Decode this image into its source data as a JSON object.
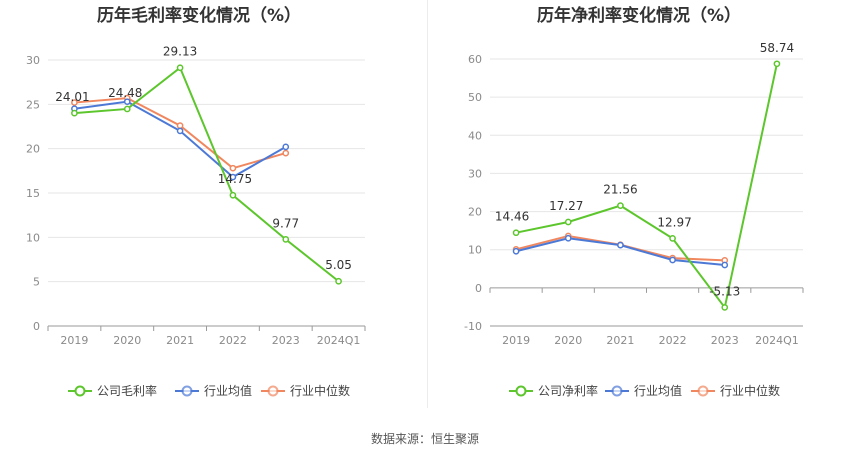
{
  "source": "数据来源：恒生聚源",
  "chart_data": [
    {
      "type": "line",
      "title": "历年毛利率变化情况（%）",
      "categories": [
        "2019",
        "2020",
        "2021",
        "2022",
        "2023",
        "2024Q1"
      ],
      "ylim": [
        0,
        30
      ],
      "yticks": [
        0,
        5,
        10,
        15,
        20,
        25,
        30
      ],
      "grid": true,
      "legend": "bottom",
      "series": [
        {
          "name": "公司毛利率",
          "color": "#5cc62c",
          "values": [
            24.01,
            24.48,
            29.13,
            14.75,
            9.77,
            5.05
          ],
          "labels": [
            "24.01",
            "24.48",
            "29.13",
            "14.75",
            "9.77",
            "5.05"
          ]
        },
        {
          "name": "行业均值",
          "color": "#4d79d6",
          "values": [
            24.5,
            25.3,
            22.0,
            16.8,
            20.2,
            null
          ]
        },
        {
          "name": "行业中位数",
          "color": "#f0875f",
          "values": [
            25.2,
            25.7,
            22.6,
            17.8,
            19.5,
            null
          ]
        }
      ]
    },
    {
      "type": "line",
      "title": "历年净利率变化情况（%）",
      "categories": [
        "2019",
        "2020",
        "2021",
        "2022",
        "2023",
        "2024Q1"
      ],
      "ylim": [
        -10,
        60
      ],
      "yticks": [
        -10,
        0,
        10,
        20,
        30,
        40,
        50,
        60
      ],
      "grid": true,
      "legend": "bottom",
      "series": [
        {
          "name": "公司净利率",
          "color": "#5cc62c",
          "values": [
            14.46,
            17.27,
            21.56,
            12.97,
            -5.13,
            58.74
          ],
          "labels": [
            "14.46",
            "17.27",
            "21.56",
            "12.97",
            "-5.13",
            "58.74"
          ]
        },
        {
          "name": "行业均值",
          "color": "#4d79d6",
          "values": [
            9.6,
            13.0,
            11.2,
            7.3,
            6.0,
            null
          ]
        },
        {
          "name": "行业中位数",
          "color": "#f0875f",
          "values": [
            10.1,
            13.6,
            11.3,
            7.8,
            7.2,
            null
          ]
        }
      ]
    }
  ]
}
